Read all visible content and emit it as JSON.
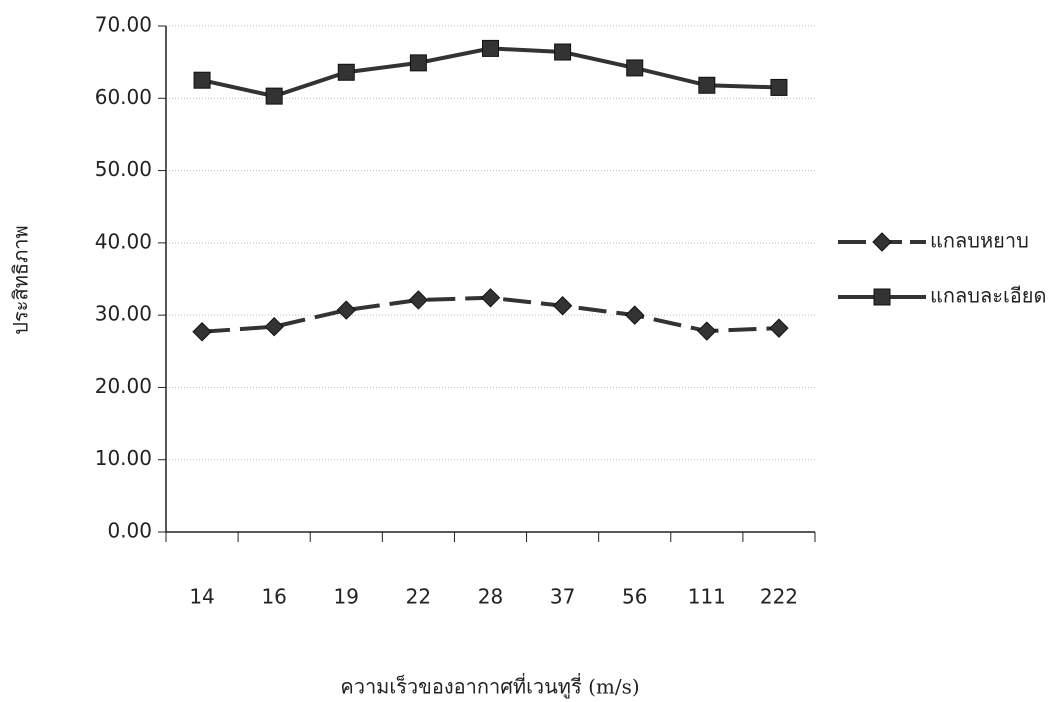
{
  "chart_data": {
    "type": "line",
    "x_label": "ความเร็วของอากาศที่เวนทูรี่ (m/s)",
    "y_label": "ประสิทธิภาพ",
    "categories": [
      "14",
      "16",
      "19",
      "22",
      "28",
      "37",
      "56",
      "111",
      "222"
    ],
    "series": [
      {
        "name": "แกลบหยาบ",
        "color": "#333333",
        "line_style": "dashed",
        "marker": "diamond",
        "values": [
          27.7,
          28.4,
          30.7,
          32.1,
          32.4,
          31.3,
          30.0,
          27.8,
          28.2
        ]
      },
      {
        "name": "แกลบละเอียด",
        "color": "#333333",
        "line_style": "solid",
        "marker": "square",
        "values": [
          62.5,
          60.3,
          63.6,
          64.9,
          66.9,
          66.4,
          64.2,
          61.8,
          61.5
        ]
      }
    ],
    "ylim": [
      0,
      70
    ],
    "yticks": [
      {
        "value": 0,
        "label": "0.00"
      },
      {
        "value": 10,
        "label": "10.00"
      },
      {
        "value": 20,
        "label": "20.00"
      },
      {
        "value": 30,
        "label": "30.00"
      },
      {
        "value": 40,
        "label": "40.00"
      },
      {
        "value": 50,
        "label": "50.00"
      },
      {
        "value": 60,
        "label": "60.00"
      },
      {
        "value": 70,
        "label": "70.00"
      }
    ],
    "grid": true,
    "legend": "right"
  }
}
